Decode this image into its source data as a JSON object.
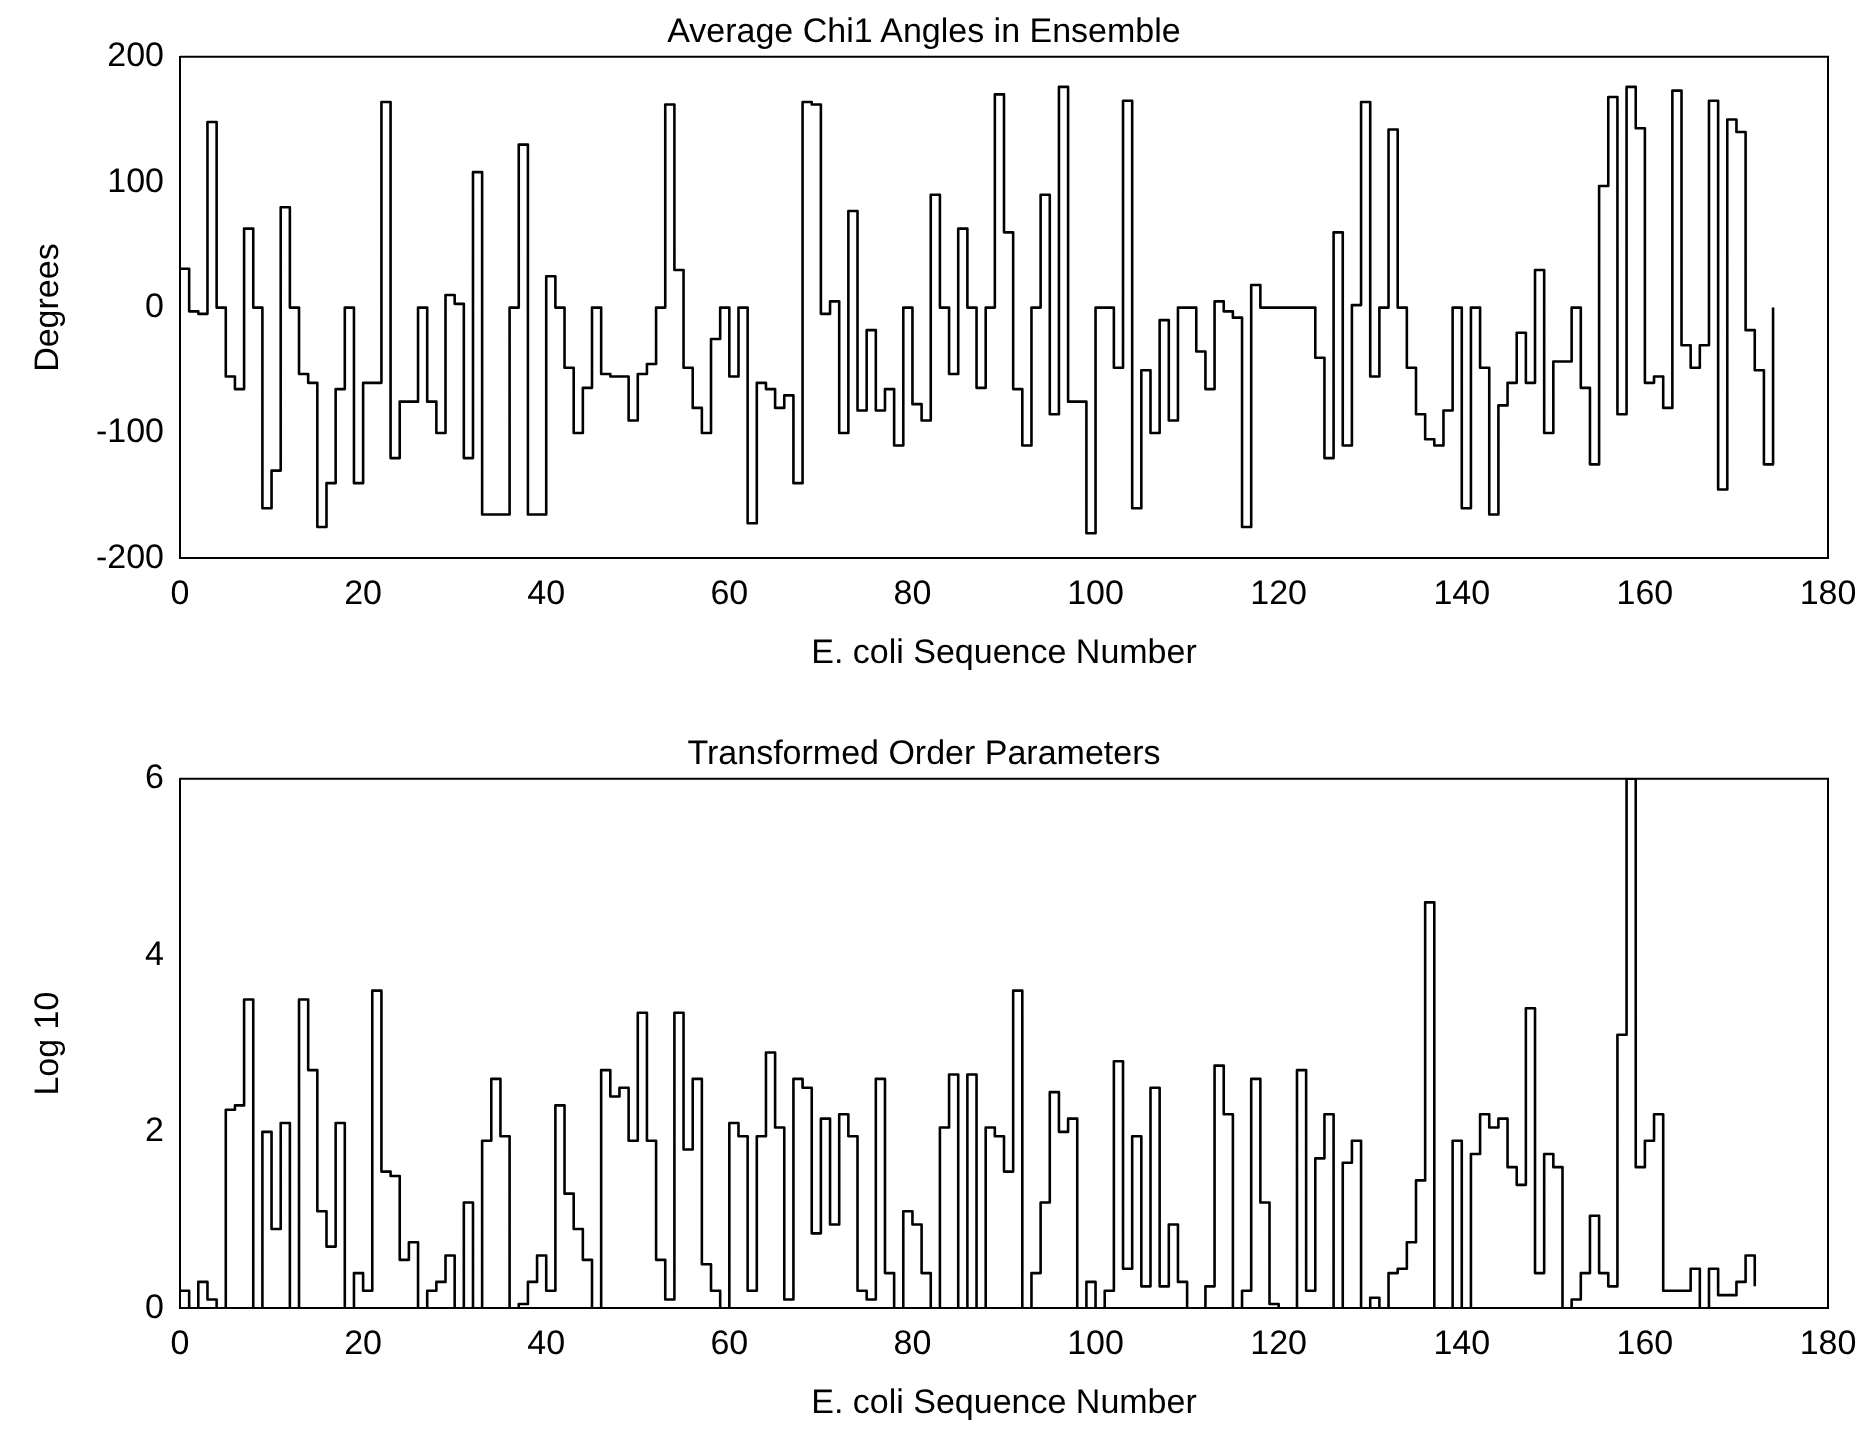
{
  "chart_data": [
    {
      "type": "step",
      "title": "Average Chi1 Angles in Ensemble",
      "xlabel": "E. coli Sequence Number",
      "ylabel": "Degrees",
      "color": "#000000",
      "grid": false,
      "xlim": [
        0,
        180
      ],
      "xticks": [
        0,
        20,
        40,
        60,
        80,
        100,
        120,
        140,
        160,
        180
      ],
      "ylim": [
        -200,
        200
      ],
      "yticks": [
        -200,
        -100,
        0,
        100,
        200
      ],
      "x": [
        0,
        1,
        2,
        3,
        4,
        5,
        6,
        7,
        8,
        9,
        10,
        11,
        12,
        13,
        14,
        15,
        16,
        17,
        18,
        19,
        20,
        21,
        22,
        23,
        24,
        25,
        26,
        27,
        28,
        29,
        30,
        31,
        32,
        33,
        34,
        35,
        36,
        37,
        38,
        39,
        40,
        41,
        42,
        43,
        44,
        45,
        46,
        47,
        48,
        49,
        50,
        51,
        52,
        53,
        54,
        55,
        56,
        57,
        58,
        59,
        60,
        61,
        62,
        63,
        64,
        65,
        66,
        67,
        68,
        69,
        70,
        71,
        72,
        73,
        74,
        75,
        76,
        77,
        78,
        79,
        80,
        81,
        82,
        83,
        84,
        85,
        86,
        87,
        88,
        89,
        90,
        91,
        92,
        93,
        94,
        95,
        96,
        97,
        98,
        99,
        100,
        101,
        102,
        103,
        104,
        105,
        106,
        107,
        108,
        109,
        110,
        111,
        112,
        113,
        114,
        115,
        116,
        117,
        118,
        119,
        120,
        121,
        122,
        123,
        124,
        125,
        126,
        127,
        128,
        129,
        130,
        131,
        132,
        133,
        134,
        135,
        136,
        137,
        138,
        139,
        140,
        141,
        142,
        143,
        144,
        145,
        146,
        147,
        148,
        149,
        150,
        151,
        152,
        153,
        154,
        155,
        156,
        157,
        158,
        159,
        160,
        161,
        162,
        163,
        164,
        165,
        166,
        167,
        168,
        169,
        170,
        171,
        172,
        173,
        174
      ],
      "values": [
        31,
        -3,
        -5,
        148,
        0,
        -55,
        -65,
        63,
        0,
        -160,
        -130,
        80,
        0,
        -53,
        -60,
        -175,
        -140,
        -65,
        0,
        -140,
        -60,
        -60,
        164,
        -120,
        -75,
        -75,
        0,
        -75,
        -100,
        10,
        3,
        -120,
        108,
        -165,
        -165,
        -165,
        0,
        130,
        -165,
        -165,
        25,
        0,
        -48,
        -100,
        -64,
        0,
        -53,
        -55,
        -55,
        -90,
        -53,
        -45,
        0,
        162,
        30,
        -48,
        -80,
        -100,
        -25,
        0,
        -55,
        0,
        -172,
        -60,
        -65,
        -80,
        -70,
        -140,
        164,
        162,
        -5,
        5,
        -100,
        77,
        -82,
        -18,
        -82,
        -65,
        -110,
        0,
        -77,
        -90,
        90,
        0,
        -53,
        63,
        0,
        -64,
        0,
        170,
        60,
        -65,
        -110,
        0,
        90,
        -85,
        176,
        -75,
        -75,
        -180,
        0,
        0,
        -48,
        165,
        -160,
        -50,
        -100,
        -10,
        -90,
        0,
        0,
        -35,
        -65,
        5,
        -3,
        -8,
        -175,
        18,
        0,
        0,
        0,
        0,
        0,
        0,
        -40,
        -120,
        60,
        -110,
        2,
        164,
        -55,
        0,
        142,
        0,
        -48,
        -85,
        -105,
        -110,
        -82,
        0,
        -160,
        0,
        -48,
        -165,
        -78,
        -60,
        -20,
        -60,
        30,
        -100,
        -43,
        -43,
        0,
        -64,
        -125,
        97,
        168,
        -85,
        176,
        143,
        -60,
        -55,
        -80,
        173,
        -30,
        -48,
        -30,
        165,
        -145,
        150,
        140,
        -18,
        -50,
        -125,
        0
      ]
    },
    {
      "type": "step",
      "title": "Transformed Order Parameters",
      "xlabel": "E. coli Sequence Number",
      "ylabel": "Log 10",
      "color": "#000000",
      "grid": false,
      "xlim": [
        0,
        180
      ],
      "xticks": [
        0,
        20,
        40,
        60,
        80,
        100,
        120,
        140,
        160,
        180
      ],
      "ylim": [
        0,
        6
      ],
      "yticks": [
        0,
        2,
        4,
        6
      ],
      "x": [
        0,
        1,
        2,
        3,
        4,
        5,
        6,
        7,
        8,
        9,
        10,
        11,
        12,
        13,
        14,
        15,
        16,
        17,
        18,
        19,
        20,
        21,
        22,
        23,
        24,
        25,
        26,
        27,
        28,
        29,
        30,
        31,
        32,
        33,
        34,
        35,
        36,
        37,
        38,
        39,
        40,
        41,
        42,
        43,
        44,
        45,
        46,
        47,
        48,
        49,
        50,
        51,
        52,
        53,
        54,
        55,
        56,
        57,
        58,
        59,
        60,
        61,
        62,
        63,
        64,
        65,
        66,
        67,
        68,
        69,
        70,
        71,
        72,
        73,
        74,
        75,
        76,
        77,
        78,
        79,
        80,
        81,
        82,
        83,
        84,
        85,
        86,
        87,
        88,
        89,
        90,
        91,
        92,
        93,
        94,
        95,
        96,
        97,
        98,
        99,
        100,
        101,
        102,
        103,
        104,
        105,
        106,
        107,
        108,
        109,
        110,
        111,
        112,
        113,
        114,
        115,
        116,
        117,
        118,
        119,
        120,
        121,
        122,
        123,
        124,
        125,
        126,
        127,
        128,
        129,
        130,
        131,
        132,
        133,
        134,
        135,
        136,
        137,
        138,
        139,
        140,
        141,
        142,
        143,
        144,
        145,
        146,
        147,
        148,
        149,
        150,
        151,
        152,
        153,
        154,
        155,
        156,
        157,
        158,
        159,
        160,
        161,
        162,
        163,
        164,
        165,
        166,
        167,
        168,
        169,
        170,
        171,
        172
      ],
      "values": [
        0.2,
        0,
        0.3,
        0.1,
        0,
        2.25,
        2.3,
        3.5,
        0,
        2.0,
        0.9,
        2.1,
        0,
        3.5,
        2.7,
        1.1,
        0.7,
        2.1,
        0,
        0.4,
        0.2,
        3.6,
        1.55,
        1.5,
        0.55,
        0.75,
        0,
        0.2,
        0.3,
        0.6,
        0,
        1.2,
        0,
        1.9,
        2.6,
        1.95,
        0,
        0.05,
        0.3,
        0.6,
        0.2,
        2.3,
        1.3,
        0.9,
        0.55,
        0,
        2.7,
        2.4,
        2.5,
        1.9,
        3.35,
        1.9,
        0.55,
        0.1,
        3.35,
        1.8,
        2.6,
        0.5,
        0.2,
        0,
        2.1,
        1.95,
        0.2,
        1.95,
        2.9,
        2.05,
        0.1,
        2.6,
        2.5,
        0.85,
        2.15,
        0.95,
        2.2,
        1.95,
        0.2,
        0.1,
        2.6,
        0.4,
        0,
        1.1,
        0.95,
        0.4,
        0,
        2.05,
        2.65,
        0,
        2.65,
        0,
        2.05,
        1.95,
        1.55,
        3.6,
        0,
        0.4,
        1.2,
        2.45,
        2.0,
        2.15,
        0,
        0.3,
        0,
        0.2,
        2.8,
        0.45,
        1.95,
        0.25,
        2.5,
        0.25,
        0.95,
        0.3,
        0,
        0,
        0.25,
        2.75,
        2.2,
        0,
        0.2,
        2.6,
        1.2,
        0.05,
        0,
        0,
        2.7,
        0.2,
        1.7,
        2.2,
        0,
        1.65,
        1.9,
        0,
        0.12,
        0,
        0.4,
        0.45,
        0.75,
        1.45,
        4.6,
        0,
        0,
        1.9,
        0,
        1.75,
        2.2,
        2.05,
        2.15,
        1.6,
        1.4,
        3.4,
        0.4,
        1.75,
        1.6,
        0,
        0.1,
        0.4,
        1.05,
        0.4,
        0.25,
        3.1,
        6.0,
        1.6,
        1.9,
        2.2,
        0.2,
        0.2,
        0.2,
        0.45,
        0,
        0.45,
        0.15,
        0.15,
        0.3,
        0.6,
        0.25
      ]
    }
  ]
}
